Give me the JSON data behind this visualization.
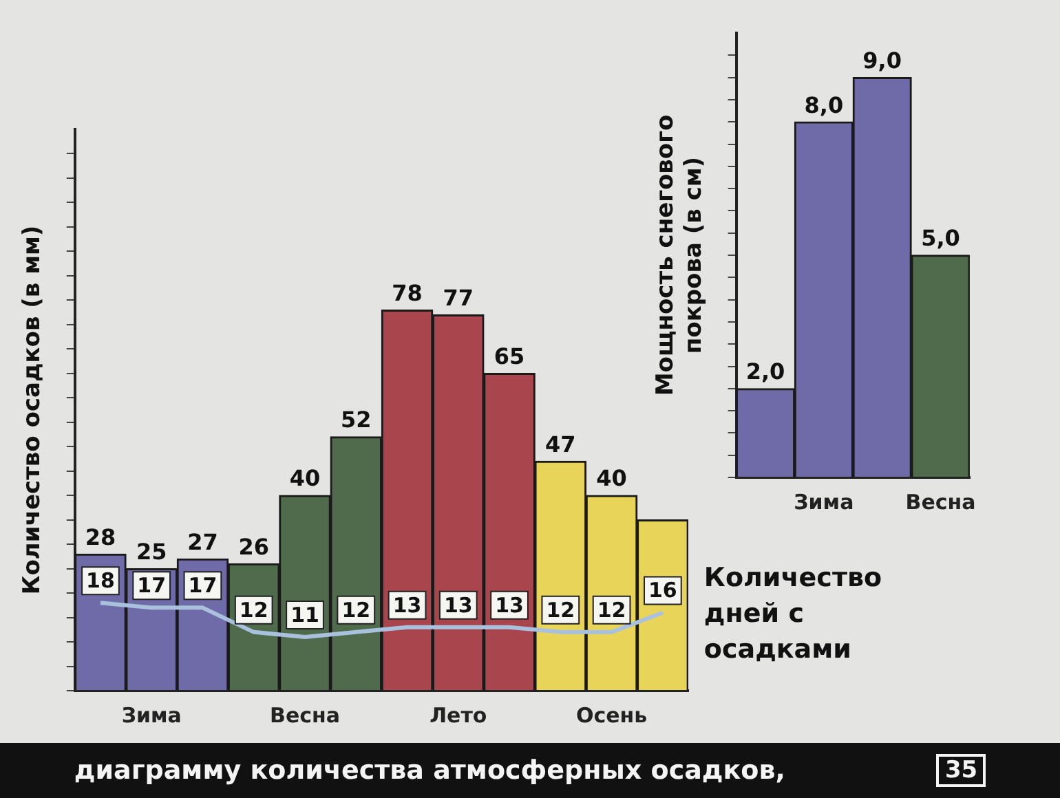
{
  "chart_data": [
    {
      "type": "bar",
      "ylabel": "Количество осадков (в мм)",
      "categories": [
        null,
        "Зима",
        null,
        null,
        "Весна",
        null,
        null,
        "Лето",
        null,
        null,
        "Осень",
        null
      ],
      "series": [
        {
          "colors": [
            "#6f6ba8",
            "#6f6ba8",
            "#6f6ba8",
            "#4f6b4c",
            "#4f6b4c",
            "#4f6b4c",
            "#a8454d",
            "#a8454d",
            "#a8454d",
            "#e9d45a",
            "#e9d45a",
            "#e9d45a"
          ],
          "values": [
            28,
            25,
            27,
            26,
            40,
            52,
            78,
            77,
            65,
            47,
            40,
            35
          ],
          "value_labels": [
            "28",
            "25",
            "27",
            "26",
            "40",
            "52",
            "78",
            "77",
            "65",
            "47",
            "40",
            null
          ]
        },
        {
          "type": "line",
          "name": "Количество дней с осадками",
          "color": "#a9c1dd",
          "values": [
            18,
            17,
            17,
            12,
            11,
            12,
            13,
            13,
            13,
            12,
            12,
            16
          ],
          "value_labels": [
            "18",
            "17",
            "17",
            "12",
            "11",
            "12",
            "13",
            "13",
            "13",
            "12",
            "12",
            "16"
          ]
        }
      ],
      "ylim": [
        0,
        115
      ],
      "yticks": [
        {
          "value": 0,
          "label": null
        },
        {
          "value": 5,
          "label": null
        },
        {
          "value": 10,
          "label": null
        },
        {
          "value": 15,
          "label": null
        },
        {
          "value": 20,
          "label": null
        },
        {
          "value": 25,
          "label": null
        },
        {
          "value": 30,
          "label": null
        },
        {
          "value": 35,
          "label": null
        },
        {
          "value": 40,
          "label": null
        },
        {
          "value": 45,
          "label": null
        },
        {
          "value": 50,
          "label": null
        },
        {
          "value": 55,
          "label": null
        },
        {
          "value": 60,
          "label": null
        },
        {
          "value": 65,
          "label": null
        },
        {
          "value": 70,
          "label": null
        },
        {
          "value": 75,
          "label": null
        },
        {
          "value": 80,
          "label": null
        },
        {
          "value": 85,
          "label": null
        },
        {
          "value": 90,
          "label": null
        },
        {
          "value": 95,
          "label": null
        },
        {
          "value": 100,
          "label": null
        },
        {
          "value": 105,
          "label": null
        },
        {
          "value": 110,
          "label": null
        }
      ],
      "tick_labels": "x",
      "annotations": [
        "диаграмму количества атмосферных осадков,",
        "35"
      ]
    },
    {
      "type": "bar",
      "ylabel": "Мощность снегового покрова (в см)",
      "categories": [
        null,
        "Зима",
        null,
        "Весна"
      ],
      "series": [
        {
          "colors": [
            "#6f6ba8",
            "#6f6ba8",
            "#6f6ba8",
            "#4f6b4c"
          ],
          "values": [
            2.0,
            8.0,
            9.0,
            5.0
          ],
          "value_labels": [
            "2,0",
            "8,0",
            "9,0",
            "5,0"
          ]
        }
      ],
      "ylim": [
        0,
        10
      ],
      "yticks": [
        {
          "value": 0,
          "label": null
        },
        {
          "value": 0.5,
          "label": null
        },
        {
          "value": 1,
          "label": null
        },
        {
          "value": 1.5,
          "label": null
        },
        {
          "value": 2,
          "label": null
        },
        {
          "value": 2.5,
          "label": null
        },
        {
          "value": 3,
          "label": null
        },
        {
          "value": 3.5,
          "label": null
        },
        {
          "value": 4,
          "label": null
        },
        {
          "value": 4.5,
          "label": null
        },
        {
          "value": 5,
          "label": null
        },
        {
          "value": 5.5,
          "label": null
        },
        {
          "value": 6,
          "label": null
        },
        {
          "value": 6.5,
          "label": null
        },
        {
          "value": 7,
          "label": null
        },
        {
          "value": 7.5,
          "label": null
        },
        {
          "value": 8,
          "label": null
        },
        {
          "value": 8.5,
          "label": null
        },
        {
          "value": 9,
          "label": null
        },
        {
          "value": 9.5,
          "label": null
        }
      ],
      "tick_labels": "x"
    }
  ]
}
